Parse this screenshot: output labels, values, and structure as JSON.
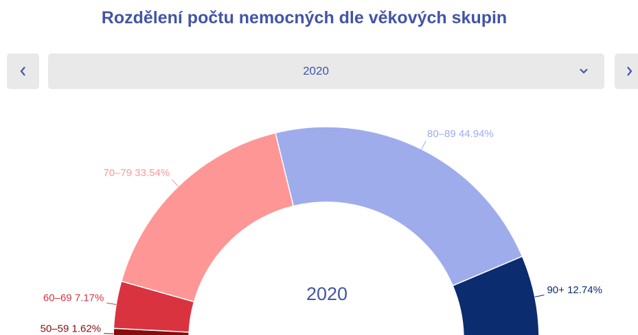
{
  "title": "Rozdělení počtu nemocných dle věkových skupin",
  "selector": {
    "value": "2020"
  },
  "chart_data": {
    "type": "pie",
    "center_label": "2020",
    "categories": [
      "50–59",
      "60–69",
      "70–79",
      "80–89",
      "90+"
    ],
    "values": [
      1.62,
      7.17,
      33.54,
      44.94,
      12.74
    ],
    "value_labels": [
      "1.62%",
      "7.17%",
      "33.54%",
      "44.94%",
      "12.74%"
    ],
    "colors": [
      "#850d0d",
      "#d9333f",
      "#ff9696",
      "#9eacec",
      "#0b2c6f"
    ]
  }
}
